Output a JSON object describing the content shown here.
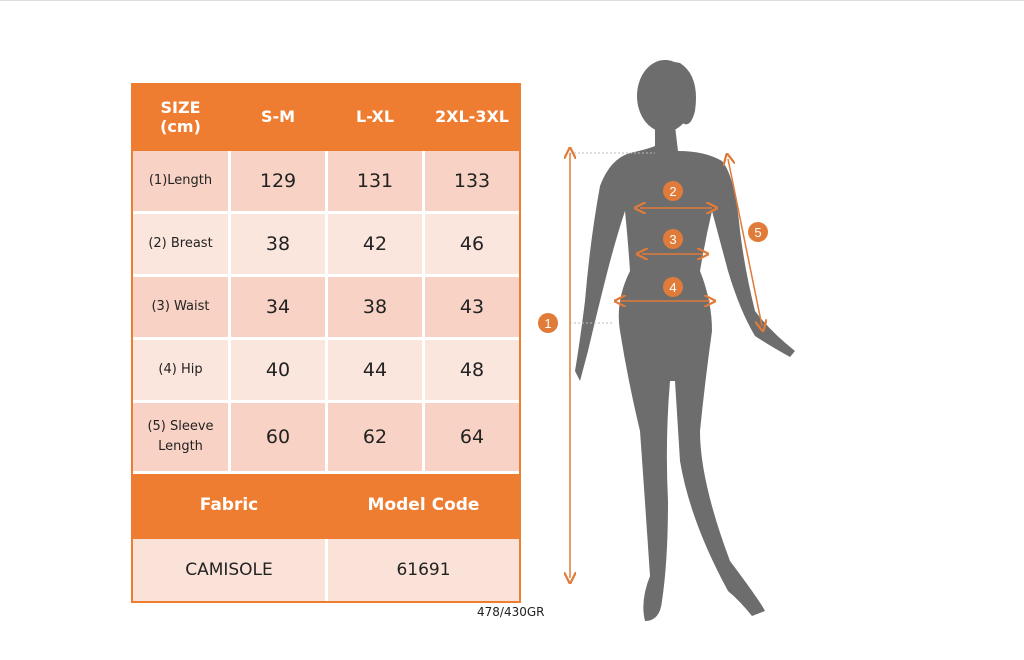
{
  "table": {
    "header": [
      "SIZE\n(cm)",
      "S-M",
      "L-XL",
      "2XL-3XL"
    ],
    "header_line1": "SIZE",
    "header_line2": "(cm)",
    "rows": [
      {
        "label": "(1)Length",
        "values": [
          "129",
          "131",
          "133"
        ]
      },
      {
        "label": "(2) Breast",
        "values": [
          "38",
          "42",
          "46"
        ]
      },
      {
        "label": "(3) Waist",
        "values": [
          "34",
          "38",
          "43"
        ]
      },
      {
        "label": "(4) Hip",
        "values": [
          "40",
          "44",
          "48"
        ]
      },
      {
        "label_line1": "(5) Sleeve",
        "label_line2": "Length",
        "values": [
          "60",
          "62",
          "64"
        ]
      }
    ],
    "fabric_header": "Fabric",
    "model_code_header": "Model Code",
    "fabric_value": "CAMISOLE",
    "model_code_value": "61691"
  },
  "code_label": "478/430GR",
  "figure": {
    "markers": [
      "1",
      "2",
      "3",
      "4",
      "5"
    ],
    "colors": {
      "accent": "#ee7d31",
      "silhouette": "#6d6d6d",
      "marker": "#e07b39"
    }
  }
}
